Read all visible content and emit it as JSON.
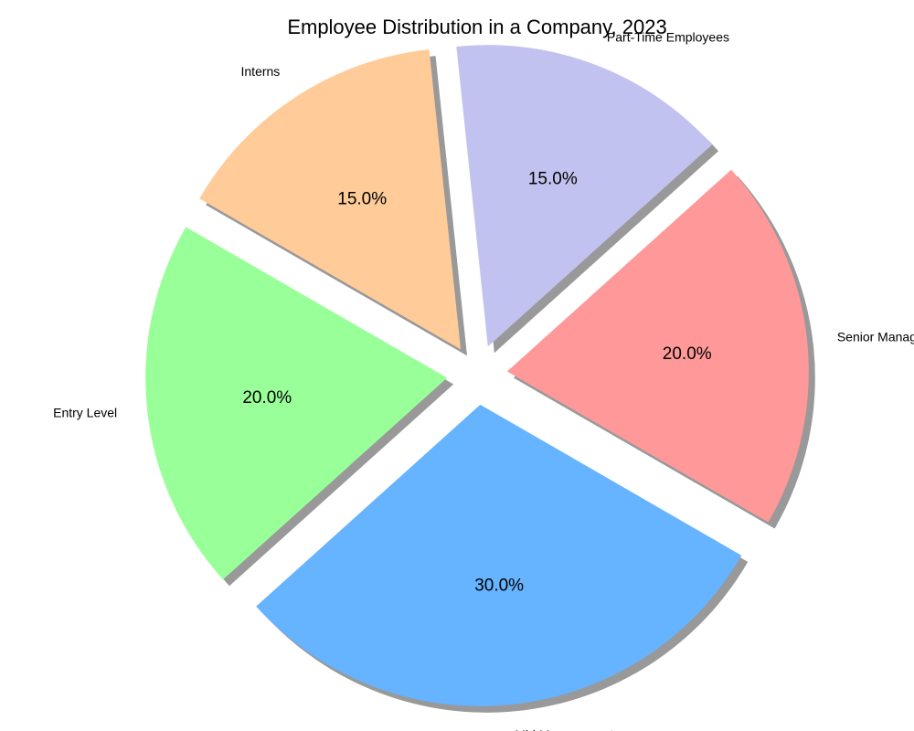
{
  "chart_data": {
    "type": "pie",
    "title": "Employee Distribution in a Company, 2023",
    "slices": [
      {
        "label": "Senior Management",
        "value": 20.0,
        "pct_label": "20.0%",
        "color": "#ff9999"
      },
      {
        "label": "Part-Time Employees",
        "value": 15.0,
        "pct_label": "15.0%",
        "color": "#c2c2f0"
      },
      {
        "label": "Interns",
        "value": 15.0,
        "pct_label": "15.0%",
        "color": "#ffcc99"
      },
      {
        "label": "Entry Level",
        "value": 20.0,
        "pct_label": "20.0%",
        "color": "#99ff99"
      },
      {
        "label": "Mid Management",
        "value": 30.0,
        "pct_label": "30.0%",
        "color": "#66b3ff"
      }
    ],
    "shadow": true,
    "exploded": true
  }
}
